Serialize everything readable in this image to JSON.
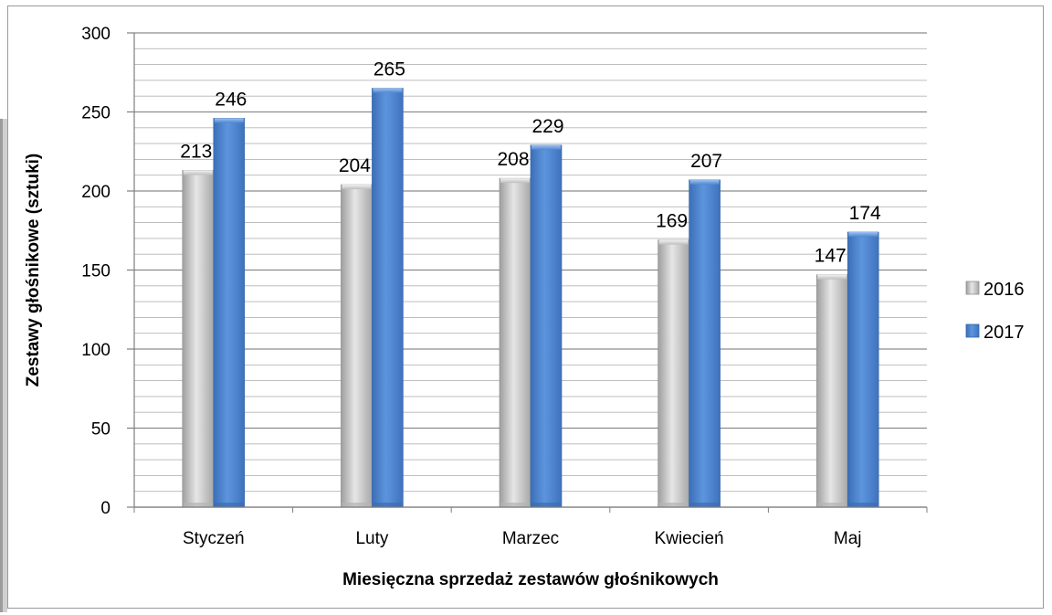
{
  "chart_data": {
    "type": "bar",
    "categories": [
      "Styczeń",
      "Luty",
      "Marzec",
      "Kwiecień",
      "Maj"
    ],
    "series": [
      {
        "name": "2016",
        "values": [
          213,
          204,
          208,
          169,
          147
        ],
        "color": "#c8c8c8"
      },
      {
        "name": "2017",
        "values": [
          246,
          265,
          229,
          207,
          174
        ],
        "color": "#4f86d1"
      }
    ],
    "xlabel": "Miesięczna sprzedaż zestawów głośnikowych",
    "ylabel": "Zestawy głośnikowe (sztuki)",
    "ylim": [
      0,
      300
    ],
    "yticks": [
      0,
      50,
      100,
      150,
      200,
      250,
      300
    ],
    "grid": true,
    "legend_position": "right"
  }
}
